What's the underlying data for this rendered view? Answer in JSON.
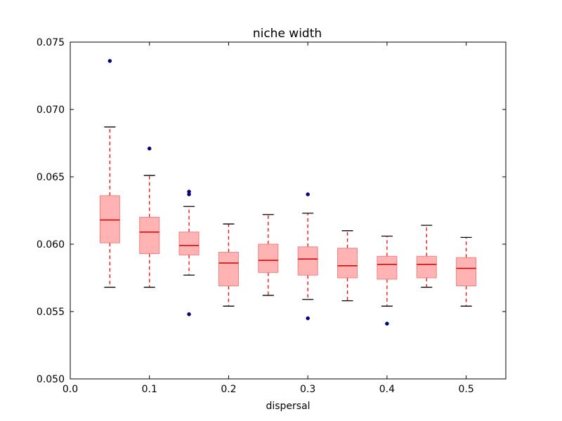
{
  "chart_data": {
    "type": "box",
    "title": "niche width",
    "xlabel": "dispersal",
    "ylabel": "",
    "xlim": [
      0.0,
      0.55
    ],
    "ylim": [
      0.05,
      0.075
    ],
    "xticks": [
      "0.0",
      "0.1",
      "0.2",
      "0.3",
      "0.4",
      "0.5"
    ],
    "yticks": [
      "0.050",
      "0.055",
      "0.060",
      "0.065",
      "0.070",
      "0.075"
    ],
    "grid": false,
    "colors": {
      "box_fill": "#ffb3b3",
      "box_edge": "#f08080",
      "median": "#cc0000",
      "whisker": "#ff0000",
      "cap": "#000000",
      "flier": "#00008b"
    },
    "boxes": [
      {
        "x": 0.05,
        "whisker_low": 0.0568,
        "q1": 0.0601,
        "median": 0.0618,
        "q3": 0.0636,
        "whisker_high": 0.0687,
        "fliers": [
          0.0736
        ]
      },
      {
        "x": 0.1,
        "whisker_low": 0.0568,
        "q1": 0.0593,
        "median": 0.0609,
        "q3": 0.062,
        "whisker_high": 0.0651,
        "fliers": [
          0.0671
        ]
      },
      {
        "x": 0.15,
        "whisker_low": 0.0577,
        "q1": 0.0592,
        "median": 0.0599,
        "q3": 0.0609,
        "whisker_high": 0.0628,
        "fliers": [
          0.0639,
          0.0637,
          0.0548
        ]
      },
      {
        "x": 0.2,
        "whisker_low": 0.0554,
        "q1": 0.0569,
        "median": 0.0586,
        "q3": 0.0594,
        "whisker_high": 0.0615,
        "fliers": []
      },
      {
        "x": 0.25,
        "whisker_low": 0.0562,
        "q1": 0.0579,
        "median": 0.0588,
        "q3": 0.06,
        "whisker_high": 0.0622,
        "fliers": []
      },
      {
        "x": 0.3,
        "whisker_low": 0.0559,
        "q1": 0.0577,
        "median": 0.0589,
        "q3": 0.0598,
        "whisker_high": 0.0623,
        "fliers": [
          0.0637,
          0.0545
        ]
      },
      {
        "x": 0.35,
        "whisker_low": 0.0558,
        "q1": 0.0575,
        "median": 0.0584,
        "q3": 0.0597,
        "whisker_high": 0.061,
        "fliers": []
      },
      {
        "x": 0.4,
        "whisker_low": 0.0554,
        "q1": 0.0574,
        "median": 0.0585,
        "q3": 0.0591,
        "whisker_high": 0.0606,
        "fliers": [
          0.0541
        ]
      },
      {
        "x": 0.45,
        "whisker_low": 0.0568,
        "q1": 0.0575,
        "median": 0.0585,
        "q3": 0.0591,
        "whisker_high": 0.0614,
        "fliers": []
      },
      {
        "x": 0.5,
        "whisker_low": 0.0554,
        "q1": 0.0569,
        "median": 0.0582,
        "q3": 0.059,
        "whisker_high": 0.0605,
        "fliers": []
      }
    ]
  }
}
